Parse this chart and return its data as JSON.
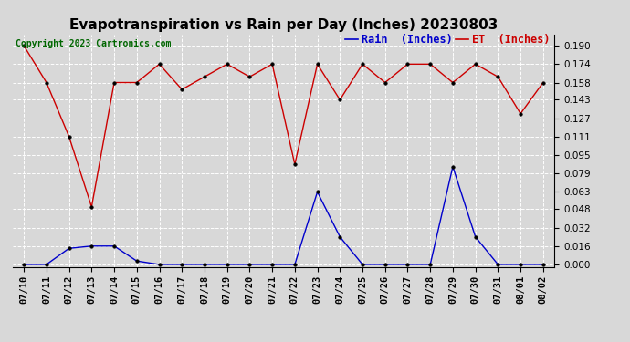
{
  "title": "Evapotranspiration vs Rain per Day (Inches) 20230803",
  "copyright": "Copyright 2023 Cartronics.com",
  "legend_rain": "Rain  (Inches)",
  "legend_et": "ET  (Inches)",
  "dates": [
    "07/10",
    "07/11",
    "07/12",
    "07/13",
    "07/14",
    "07/15",
    "07/16",
    "07/17",
    "07/18",
    "07/19",
    "07/20",
    "07/21",
    "07/22",
    "07/23",
    "07/24",
    "07/25",
    "07/26",
    "07/27",
    "07/28",
    "07/29",
    "07/30",
    "07/31",
    "08/01",
    "08/02"
  ],
  "et_values": [
    0.19,
    0.158,
    0.111,
    0.05,
    0.158,
    0.158,
    0.174,
    0.152,
    0.163,
    0.174,
    0.163,
    0.174,
    0.087,
    0.174,
    0.143,
    0.174,
    0.158,
    0.174,
    0.174,
    0.158,
    0.174,
    0.163,
    0.131,
    0.158
  ],
  "rain_values": [
    0.0,
    0.0,
    0.014,
    0.016,
    0.016,
    0.003,
    0.0,
    0.0,
    0.0,
    0.0,
    0.0,
    0.0,
    0.0,
    0.063,
    0.024,
    0.0,
    0.0,
    0.0,
    0.0,
    0.085,
    0.024,
    0.0,
    0.0,
    0.0
  ],
  "et_color": "#cc0000",
  "rain_color": "#0000cc",
  "bg_color": "#d8d8d8",
  "grid_color": "#ffffff",
  "ylim_min": -0.002,
  "ylim_max": 0.2,
  "yticks": [
    0.0,
    0.016,
    0.032,
    0.048,
    0.063,
    0.079,
    0.095,
    0.111,
    0.127,
    0.143,
    0.158,
    0.174,
    0.19
  ],
  "title_fontsize": 11,
  "copyright_fontsize": 7,
  "legend_fontsize": 8.5,
  "tick_fontsize": 7.5,
  "marker_size": 2.5,
  "linewidth": 1.0
}
